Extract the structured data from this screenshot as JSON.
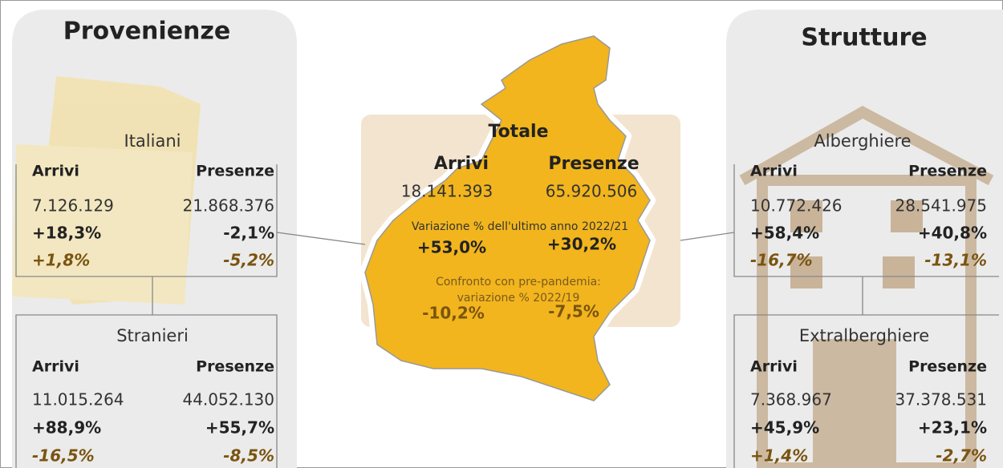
{
  "left": {
    "title": "Provenienze",
    "groups": [
      {
        "title": "Italiani",
        "arrivi_label": "Arrivi",
        "presenze_label": "Presenze",
        "arrivi": [
          "7.126.129",
          "+18,3%",
          "+1,8%"
        ],
        "presenze": [
          "21.868.376",
          "-2,1%",
          "-5,2%"
        ]
      },
      {
        "title": "Stranieri",
        "arrivi_label": "Arrivi",
        "presenze_label": "Presenze",
        "arrivi": [
          "11.015.264",
          "+88,9%",
          "-16,5%"
        ],
        "presenze": [
          "44.052.130",
          "+55,7%",
          "-8,5%"
        ]
      }
    ]
  },
  "center": {
    "title": "Totale",
    "arrivi_label": "Arrivi",
    "presenze_label": "Presenze",
    "variation_label": "Variazione % dell'ultimo anno 2022/21",
    "comparison_label": [
      "Confronto con pre-pandemia:",
      "variazione % 2022/19"
    ],
    "arrivi": [
      "18.141.393",
      "+53,0%",
      "-10,2%"
    ],
    "presenze": [
      "65.920.506",
      "+30,2%",
      "-7,5%"
    ]
  },
  "right": {
    "title": "Strutture",
    "groups": [
      {
        "title": "Alberghiere",
        "arrivi_label": "Arrivi",
        "presenze_label": "Presenze",
        "arrivi": [
          "10.772.426",
          "+58,4%",
          "-16,7%"
        ],
        "presenze": [
          "28.541.975",
          "+40,8%",
          "-13,1%"
        ]
      },
      {
        "title": "Extralberghiere",
        "arrivi_label": "Arrivi",
        "presenze_label": "Presenze",
        "arrivi": [
          "7.368.967",
          "+45,9%",
          "+1,4%"
        ],
        "presenze": [
          "37.378.531",
          "+23,1%",
          "-2,7%"
        ]
      }
    ]
  }
}
